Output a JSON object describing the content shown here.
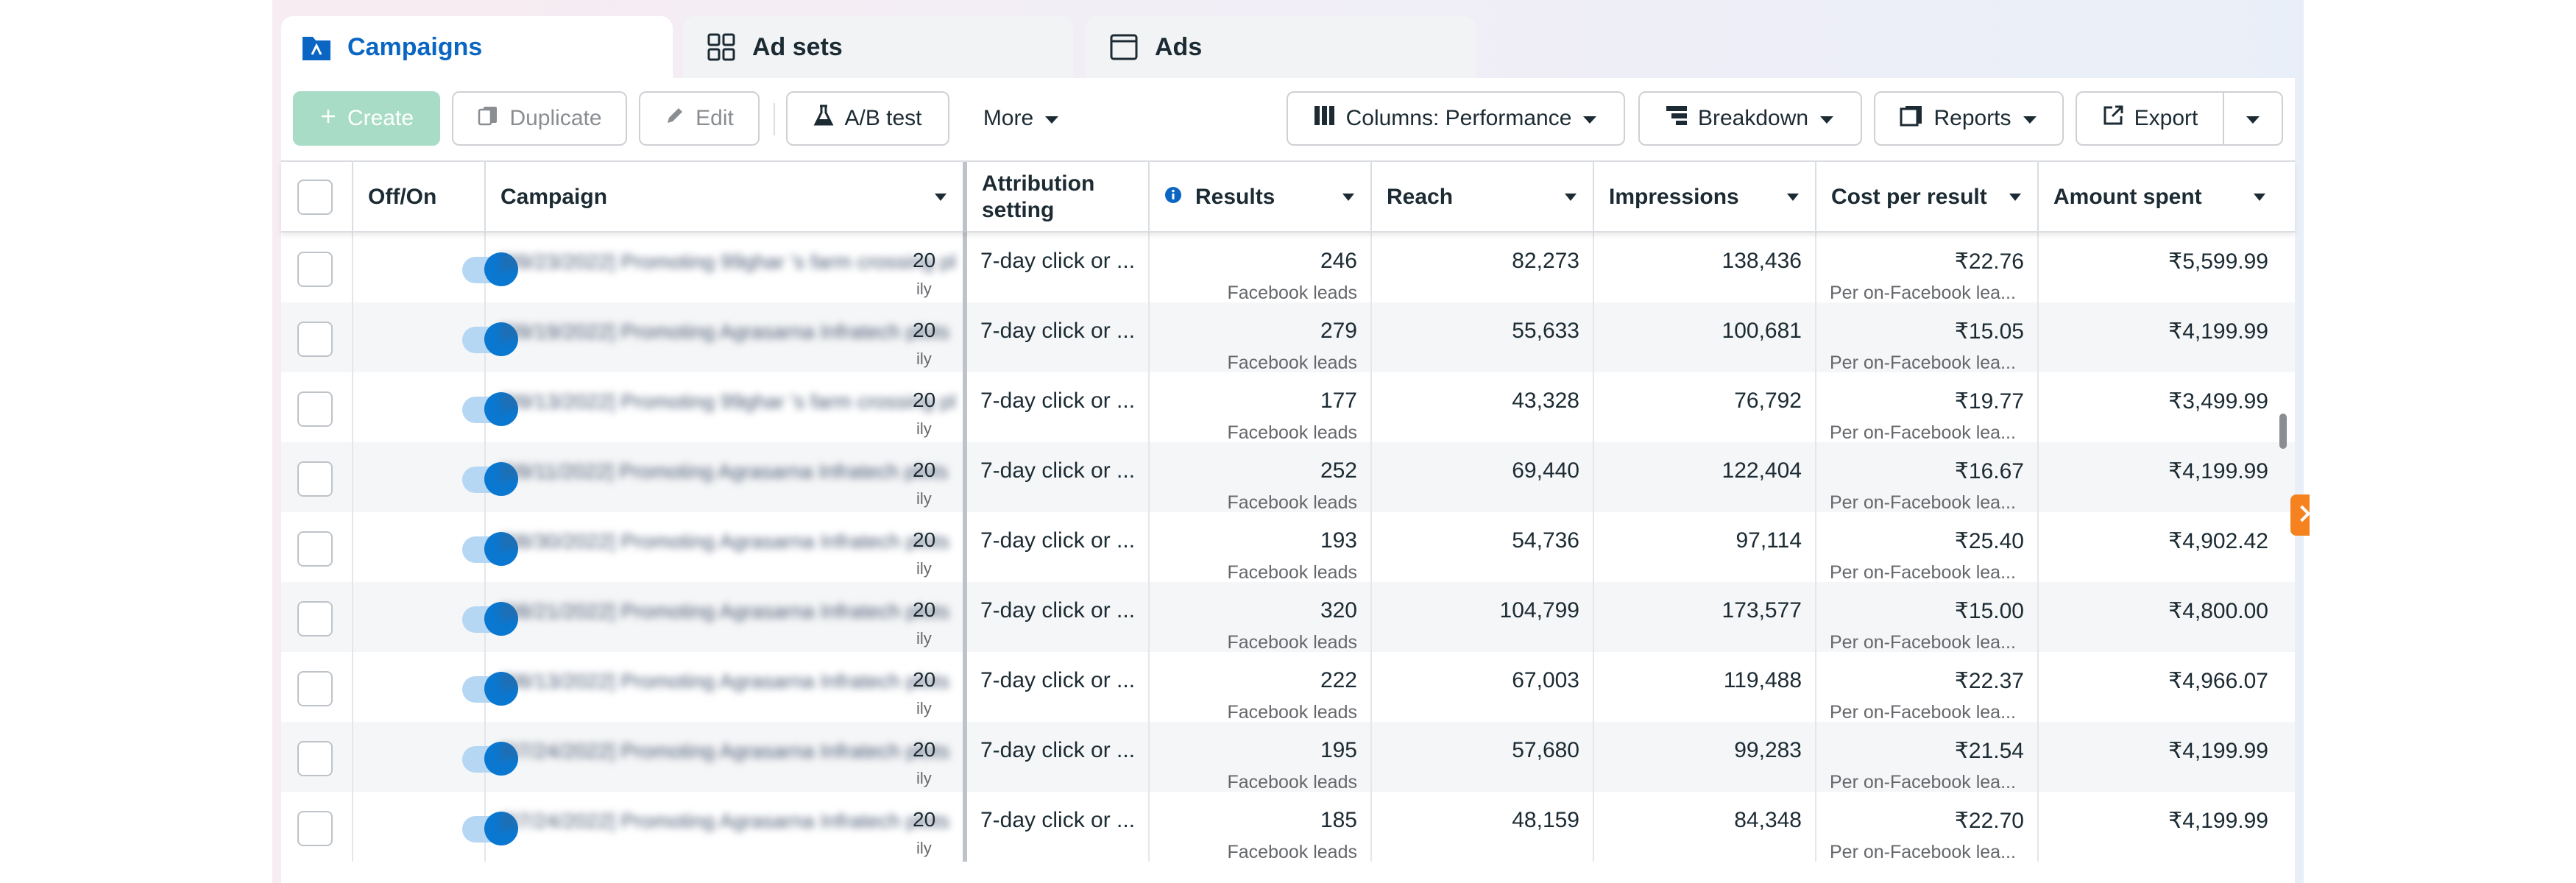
{
  "tabs": {
    "campaigns": "Campaigns",
    "adsets": "Ad sets",
    "ads": "Ads"
  },
  "toolbar": {
    "create": "Create",
    "duplicate": "Duplicate",
    "edit": "Edit",
    "abtest": "A/B test",
    "more": "More",
    "columns": "Columns: Performance",
    "breakdown": "Breakdown",
    "reports": "Reports",
    "export": "Export"
  },
  "columns": {
    "offon": "Off/On",
    "campaign": "Campaign",
    "attribution": "Attribution setting",
    "results": "Results",
    "reach": "Reach",
    "impressions": "Impressions",
    "cost": "Cost per result",
    "spent": "Amount spent"
  },
  "rows": [
    {
      "campaign": "[09/23/2022] Promoting 99ghar 's farm crossing plot",
      "tail": "20",
      "tail2": "ily",
      "attribution": "7-day click or ...",
      "results": "246",
      "results_sub": "Facebook leads",
      "reach": "82,273",
      "impressions": "138,436",
      "cost": "₹22.76",
      "cost_sub": "Per on-Facebook lea...",
      "spent": "₹5,599.99"
    },
    {
      "campaign": "[09/19/2022] Promoting Agrasarna Infratech plots",
      "tail": "20",
      "tail2": "ily",
      "attribution": "7-day click or ...",
      "results": "279",
      "results_sub": "Facebook leads",
      "reach": "55,633",
      "impressions": "100,681",
      "cost": "₹15.05",
      "cost_sub": "Per on-Facebook lea...",
      "spent": "₹4,199.99"
    },
    {
      "campaign": "[09/13/2022] Promoting 99ghar 's farm crossing plot",
      "tail": "20",
      "tail2": "ily",
      "attribution": "7-day click or ...",
      "results": "177",
      "results_sub": "Facebook leads",
      "reach": "43,328",
      "impressions": "76,792",
      "cost": "₹19.77",
      "cost_sub": "Per on-Facebook lea...",
      "spent": "₹3,499.99"
    },
    {
      "campaign": "[09/11/2022] Promoting Agrasarna Infratech plots",
      "tail": "20",
      "tail2": "ily",
      "attribution": "7-day click or ...",
      "results": "252",
      "results_sub": "Facebook leads",
      "reach": "69,440",
      "impressions": "122,404",
      "cost": "₹16.67",
      "cost_sub": "Per on-Facebook lea...",
      "spent": "₹4,199.99"
    },
    {
      "campaign": "[08/30/2022] Promoting Agrasarna Infratech plots",
      "tail": "20",
      "tail2": "ily",
      "attribution": "7-day click or ...",
      "results": "193",
      "results_sub": "Facebook leads",
      "reach": "54,736",
      "impressions": "97,114",
      "cost": "₹25.40",
      "cost_sub": "Per on-Facebook lea...",
      "spent": "₹4,902.42"
    },
    {
      "campaign": "[08/21/2022] Promoting Agrasarna Infratech plots",
      "tail": "20",
      "tail2": "ily",
      "attribution": "7-day click or ...",
      "results": "320",
      "results_sub": "Facebook leads",
      "reach": "104,799",
      "impressions": "173,577",
      "cost": "₹15.00",
      "cost_sub": "Per on-Facebook lea...",
      "spent": "₹4,800.00"
    },
    {
      "campaign": "[08/13/2022] Promoting Agrasarna Infratech plots",
      "tail": "20",
      "tail2": "ily",
      "attribution": "7-day click or ...",
      "results": "222",
      "results_sub": "Facebook leads",
      "reach": "67,003",
      "impressions": "119,488",
      "cost": "₹22.37",
      "cost_sub": "Per on-Facebook lea...",
      "spent": "₹4,966.07"
    },
    {
      "campaign": "[07/24/2022] Promoting Agrasarna Infratech plots",
      "tail": "20",
      "tail2": "ily",
      "attribution": "7-day click or ...",
      "results": "195",
      "results_sub": "Facebook leads",
      "reach": "57,680",
      "impressions": "99,283",
      "cost": "₹21.54",
      "cost_sub": "Per on-Facebook lea...",
      "spent": "₹4,199.99"
    },
    {
      "campaign": "[07/24/2022] Promoting Agrasarna Infratech plots",
      "tail": "20",
      "tail2": "ily",
      "attribution": "7-day click or ...",
      "results": "185",
      "results_sub": "Facebook leads",
      "reach": "48,159",
      "impressions": "84,348",
      "cost": "₹22.70",
      "cost_sub": "Per on-Facebook lea...",
      "spent": "₹4,199.99"
    }
  ],
  "colors": {
    "accent": "#0a66c2",
    "toggle_on": "#0a78d1",
    "create_bg": "#a8dcc6",
    "side_tab": "#f5821f"
  }
}
